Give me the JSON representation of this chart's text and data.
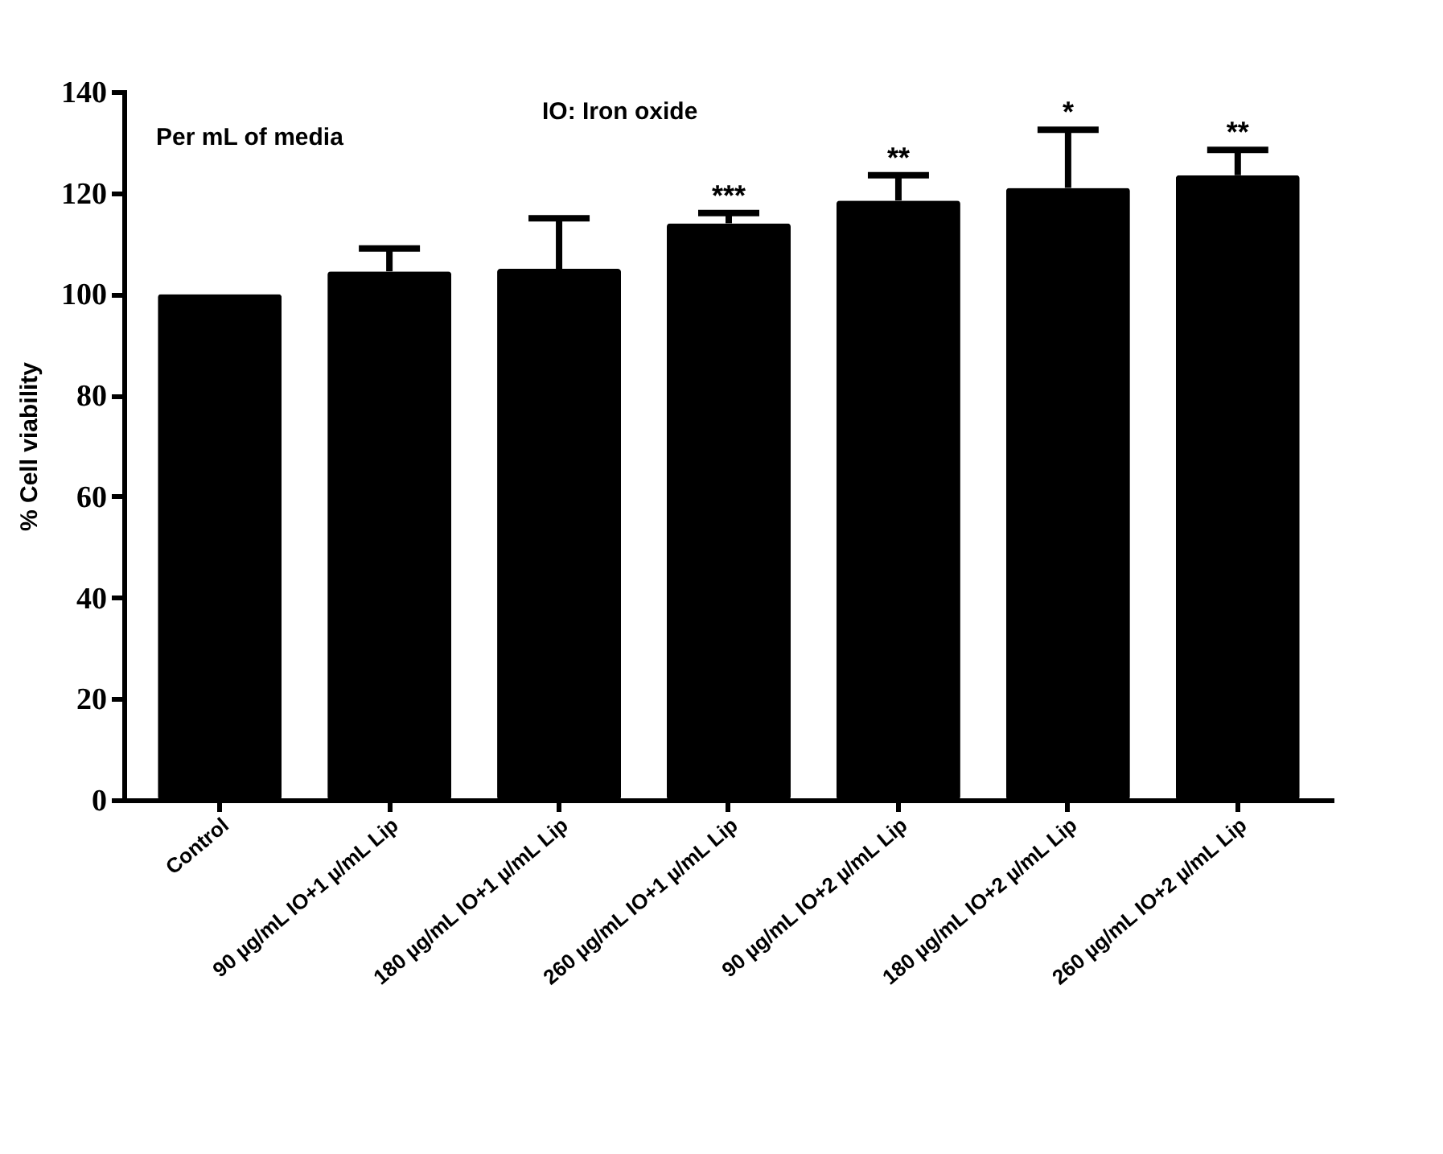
{
  "chart_data": {
    "type": "bar",
    "ylabel": "% Cell viability",
    "categories": [
      "Control",
      "90 µg/mL IO+1 µ/mL Lip",
      "180 µg/mL IO+1 µ/mL Lip",
      "260 µg/mL IO+1 µ/mL Lip",
      "90 µg/mL IO+2 µ/mL Lip",
      "180 µg/mL IO+2 µ/mL Lip",
      "260 µg/mL IO+2 µ/mL Lip"
    ],
    "values": [
      100,
      104.5,
      105,
      114,
      118.5,
      121,
      123.5
    ],
    "errors": [
      null,
      [
        104.5,
        109
      ],
      [
        105,
        115
      ],
      [
        114,
        116
      ],
      [
        118.5,
        123.5
      ],
      [
        121,
        132.5
      ],
      [
        123.5,
        128.5
      ]
    ],
    "color": "#000000",
    "ylim": [
      0,
      140
    ],
    "yticks": [
      0,
      20,
      40,
      60,
      80,
      100,
      120,
      140
    ],
    "annotations": [
      "Per mL of media",
      "IO: Iron oxide",
      {
        "text": "***",
        "x": "260 µg/mL IO+1 µ/mL Lip",
        "y": 116
      },
      {
        "text": "**",
        "x": "90 µg/mL IO+2 µ/mL Lip",
        "y": 123.5
      },
      {
        "text": "*",
        "x": "180 µg/mL IO+2 µ/mL Lip",
        "y": 132.5
      },
      {
        "text": "**",
        "x": "260 µg/mL IO+2 µ/mL Lip",
        "y": 128.5
      }
    ]
  }
}
